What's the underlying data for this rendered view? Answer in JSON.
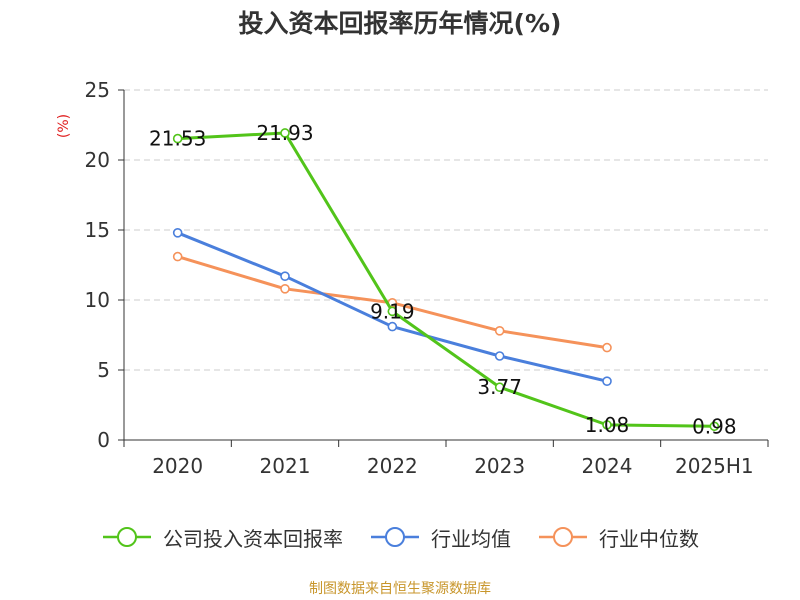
{
  "chart_data": {
    "type": "line",
    "title": "投入资本回报率历年情况(%)",
    "ylabel": "(%)",
    "categories": [
      "2020",
      "2021",
      "2022",
      "2023",
      "2024",
      "2025H1"
    ],
    "ylim": [
      0,
      25
    ],
    "yticks": [
      0,
      5,
      10,
      15,
      20,
      25
    ],
    "grid": true,
    "legend_position": "bottom",
    "series": [
      {
        "name": "公司投入资本回报率",
        "color": "#52c41a",
        "values": [
          21.53,
          21.93,
          9.19,
          3.77,
          1.08,
          0.98
        ],
        "data_labels": [
          "21.53",
          "21.93",
          "9.19",
          "3.77",
          "1.08",
          "0.98"
        ]
      },
      {
        "name": "行业均值",
        "color": "#4a7fdc",
        "values": [
          14.8,
          11.7,
          8.1,
          6.0,
          4.2,
          null
        ]
      },
      {
        "name": "行业中位数",
        "color": "#f5925a",
        "values": [
          13.1,
          10.8,
          9.8,
          7.8,
          6.6,
          null
        ]
      }
    ]
  },
  "source": "制图数据来自恒生聚源数据库"
}
